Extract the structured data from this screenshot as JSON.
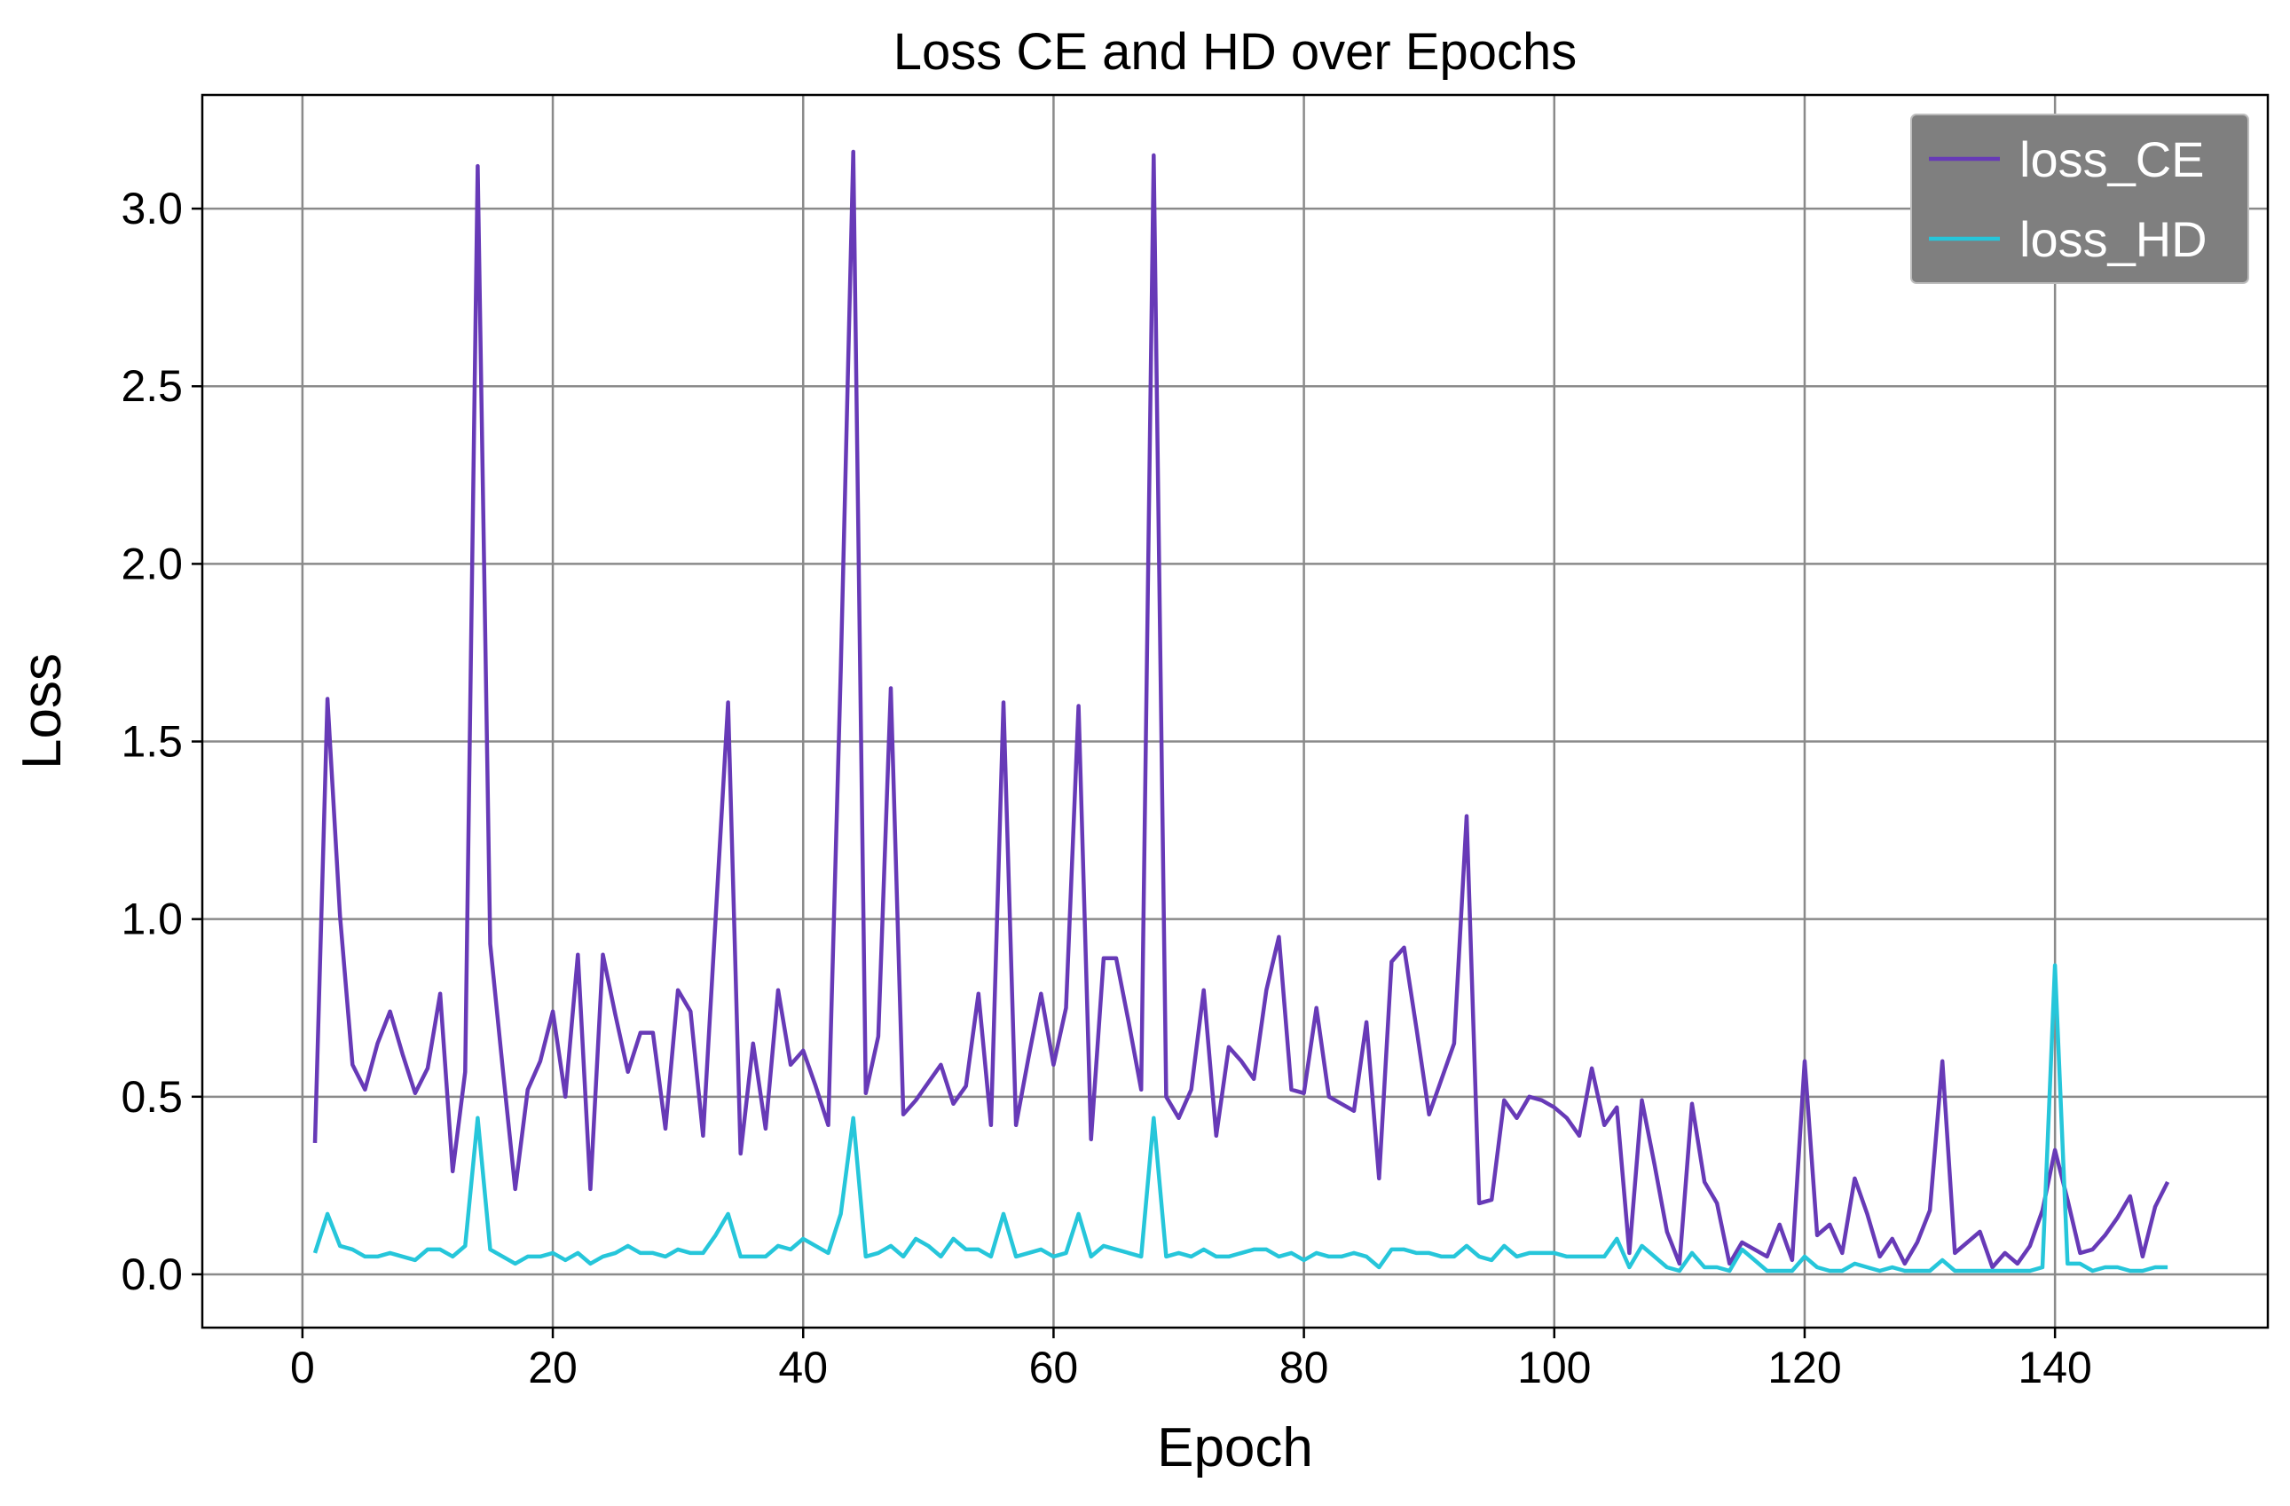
{
  "chart_data": {
    "type": "line",
    "title": "Loss CE and HD over Epochs",
    "xlabel": "Epoch",
    "ylabel": "Loss",
    "xlim": [
      -8,
      157
    ],
    "ylim": [
      -0.15,
      3.32
    ],
    "xticks": [
      0,
      20,
      40,
      60,
      80,
      100,
      120,
      140
    ],
    "xtick_labels": [
      "0",
      "20",
      "40",
      "60",
      "80",
      "100",
      "120",
      "140"
    ],
    "yticks": [
      0.0,
      0.5,
      1.0,
      1.5,
      2.0,
      2.5,
      3.0
    ],
    "ytick_labels": [
      "0.0",
      "0.5",
      "1.0",
      "1.5",
      "2.0",
      "2.5",
      "3.0"
    ],
    "grid": true,
    "legend_position": "top-right",
    "x_start": 1,
    "series": [
      {
        "name": "loss_CE",
        "color": "#673ab7",
        "values": [
          0.37,
          1.62,
          1.01,
          0.59,
          0.52,
          0.65,
          0.74,
          0.62,
          0.51,
          0.58,
          0.79,
          0.29,
          0.57,
          3.12,
          0.93,
          0.58,
          0.24,
          0.52,
          0.6,
          0.74,
          0.5,
          0.9,
          0.24,
          0.9,
          0.73,
          0.57,
          0.68,
          0.68,
          0.41,
          0.8,
          0.74,
          0.39,
          1.0,
          1.61,
          0.34,
          0.65,
          0.41,
          0.8,
          0.59,
          0.63,
          0.53,
          0.42,
          1.7,
          3.16,
          0.51,
          0.67,
          1.65,
          0.45,
          0.49,
          0.54,
          0.59,
          0.48,
          0.53,
          0.79,
          0.42,
          1.61,
          0.42,
          0.61,
          0.79,
          0.59,
          0.75,
          1.6,
          0.38,
          0.89,
          0.89,
          0.71,
          0.52,
          3.15,
          0.5,
          0.44,
          0.52,
          0.8,
          0.39,
          0.64,
          0.6,
          0.55,
          0.8,
          0.95,
          0.52,
          0.51,
          0.75,
          0.5,
          0.48,
          0.46,
          0.71,
          0.27,
          0.88,
          0.92,
          0.69,
          0.45,
          0.55,
          0.65,
          1.29,
          0.2,
          0.21,
          0.49,
          0.44,
          0.5,
          0.49,
          0.47,
          0.44,
          0.39,
          0.58,
          0.42,
          0.47,
          0.06,
          0.49,
          0.31,
          0.12,
          0.03,
          0.48,
          0.26,
          0.2,
          0.03,
          0.09,
          0.07,
          0.05,
          0.14,
          0.04,
          0.6,
          0.11,
          0.14,
          0.06,
          0.27,
          0.17,
          0.05,
          0.1,
          0.03,
          0.09,
          0.18,
          0.6,
          0.06,
          0.09,
          0.12,
          0.02,
          0.06,
          0.03,
          0.08,
          0.18,
          0.35,
          0.21,
          0.06,
          0.07,
          0.11,
          0.16,
          0.22,
          0.05,
          0.19,
          0.26
        ]
      },
      {
        "name": "loss_HD",
        "color": "#26c6da",
        "values": [
          0.06,
          0.17,
          0.08,
          0.07,
          0.05,
          0.05,
          0.06,
          0.05,
          0.04,
          0.07,
          0.07,
          0.05,
          0.08,
          0.44,
          0.07,
          0.05,
          0.03,
          0.05,
          0.05,
          0.06,
          0.04,
          0.06,
          0.03,
          0.05,
          0.06,
          0.08,
          0.06,
          0.06,
          0.05,
          0.07,
          0.06,
          0.06,
          0.11,
          0.17,
          0.05,
          0.05,
          0.05,
          0.08,
          0.07,
          0.1,
          0.08,
          0.06,
          0.17,
          0.44,
          0.05,
          0.06,
          0.08,
          0.05,
          0.1,
          0.08,
          0.05,
          0.1,
          0.07,
          0.07,
          0.05,
          0.17,
          0.05,
          0.06,
          0.07,
          0.05,
          0.06,
          0.17,
          0.05,
          0.08,
          0.07,
          0.06,
          0.05,
          0.44,
          0.05,
          0.06,
          0.05,
          0.07,
          0.05,
          0.05,
          0.06,
          0.07,
          0.07,
          0.05,
          0.06,
          0.04,
          0.06,
          0.05,
          0.05,
          0.06,
          0.05,
          0.02,
          0.07,
          0.07,
          0.06,
          0.06,
          0.05,
          0.05,
          0.08,
          0.05,
          0.04,
          0.08,
          0.05,
          0.06,
          0.06,
          0.06,
          0.05,
          0.05,
          0.05,
          0.05,
          0.1,
          0.02,
          0.08,
          0.05,
          0.02,
          0.01,
          0.06,
          0.02,
          0.02,
          0.01,
          0.07,
          0.04,
          0.01,
          0.01,
          0.01,
          0.05,
          0.02,
          0.01,
          0.01,
          0.03,
          0.02,
          0.01,
          0.02,
          0.01,
          0.01,
          0.01,
          0.04,
          0.01,
          0.01,
          0.01,
          0.01,
          0.01,
          0.01,
          0.01,
          0.02,
          0.87,
          0.03,
          0.03,
          0.01,
          0.02,
          0.02,
          0.01,
          0.01,
          0.02,
          0.02
        ]
      }
    ]
  }
}
